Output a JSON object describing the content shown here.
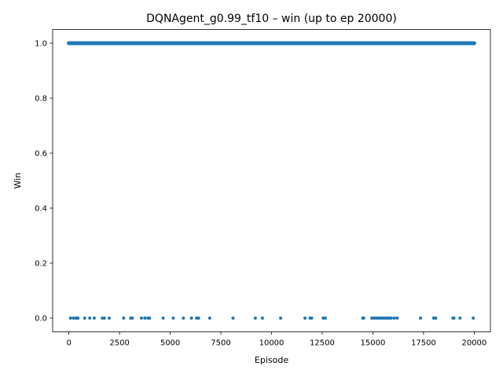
{
  "chart_data": {
    "type": "scatter",
    "title": "DQNAgent_g0.99_tf10 – win (up to ep 20000)",
    "xlabel": "Episode",
    "ylabel": "Win",
    "xlim": [
      -800,
      20800
    ],
    "ylim": [
      -0.05,
      1.05
    ],
    "xticks": [
      0,
      2500,
      5000,
      7500,
      10000,
      12500,
      15000,
      17500,
      20000
    ],
    "xtick_labels": [
      "0",
      "2500",
      "5000",
      "7500",
      "10000",
      "12500",
      "15000",
      "17500",
      "20000"
    ],
    "yticks": [
      0.0,
      0.2,
      0.4,
      0.6,
      0.8,
      1.0
    ],
    "ytick_labels": [
      "0.0",
      "0.2",
      "0.4",
      "0.6",
      "0.8",
      "1.0"
    ],
    "grid": false,
    "marker_color": "#1f77b4",
    "series": [
      {
        "y_value": 1.0,
        "x_range": [
          0,
          20000
        ]
      },
      {
        "y_value": 0.0,
        "x": [
          80,
          230,
          350,
          420,
          450,
          780,
          1030,
          1250,
          1650,
          1750,
          1990,
          2700,
          3050,
          3130,
          3580,
          3750,
          3900,
          3980,
          4650,
          5150,
          5650,
          6050,
          6300,
          6400,
          6950,
          8100,
          9200,
          9550,
          10450,
          11650,
          11900,
          11980,
          12550,
          12650,
          14500,
          14550,
          14950,
          15050,
          15150,
          15250,
          15350,
          15450,
          15550,
          15650,
          15750,
          15800,
          15900,
          16050,
          16200,
          17350,
          18000,
          18100,
          18950,
          19000,
          19300,
          19950
        ]
      }
    ]
  }
}
